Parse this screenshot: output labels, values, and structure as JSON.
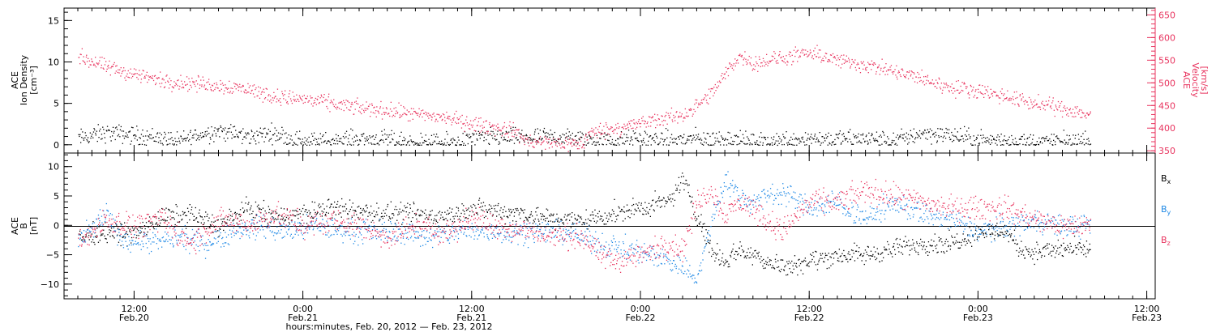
{
  "colors": {
    "axis": "#000000",
    "density": "#000000",
    "velocity": "#e8335e",
    "bx": "#000000",
    "by": "#1e88e5",
    "bz": "#e8335e"
  },
  "chart_data": [
    {
      "panel": "plasma",
      "type": "scatter",
      "x_range_hours": [
        0,
        72
      ],
      "x_note": "hours after Feb.20 08:00",
      "left_axis": {
        "label_lines": [
          "ACE",
          "Ion Density",
          "[cm⁻³]"
        ],
        "ticks": [
          0,
          5,
          10,
          15
        ],
        "range": [
          -1,
          16.5
        ]
      },
      "right_axis": {
        "label_lines": [
          "ACE",
          "Velocity",
          "[km/s]"
        ],
        "ticks": [
          350,
          400,
          450,
          500,
          550,
          600,
          650
        ],
        "range": [
          345,
          665
        ]
      },
      "series": [
        {
          "key": "density",
          "axis": "left",
          "anchors": [
            [
              0,
              0.8
            ],
            [
              2,
              1.5
            ],
            [
              4,
              1.2
            ],
            [
              6,
              0.9
            ],
            [
              7,
              0.3
            ],
            [
              8,
              1.0
            ],
            [
              10,
              1.8
            ],
            [
              12,
              1.0
            ],
            [
              14,
              1.5
            ],
            [
              15,
              0.8
            ],
            [
              17,
              0.4
            ],
            [
              20,
              0.8
            ],
            [
              22,
              0.6
            ],
            [
              24,
              0.3
            ],
            [
              26,
              0.2
            ],
            [
              28,
              0.8
            ],
            [
              30,
              1.0
            ],
            [
              32,
              0.9
            ],
            [
              34,
              1.0
            ],
            [
              36,
              0.7
            ],
            [
              38,
              0.5
            ],
            [
              40,
              0.8
            ],
            [
              42,
              0.6
            ],
            [
              44,
              0.8
            ],
            [
              45,
              0.6
            ],
            [
              46,
              0.9
            ],
            [
              47,
              0.6
            ],
            [
              48,
              0.3
            ],
            [
              50,
              0.6
            ],
            [
              52,
              0.9
            ],
            [
              54,
              0.7
            ],
            [
              56,
              0.8
            ],
            [
              58,
              0.5
            ],
            [
              60,
              1.5
            ],
            [
              62,
              1.2
            ],
            [
              64,
              0.7
            ],
            [
              66,
              0.5
            ],
            [
              68,
              0.4
            ],
            [
              70,
              0.5
            ],
            [
              72,
              0.4
            ]
          ],
          "noise": 0.9
        },
        {
          "key": "velocity",
          "axis": "right",
          "anchors": [
            [
              0,
              560
            ],
            [
              2,
              535
            ],
            [
              4,
              520
            ],
            [
              6,
              505
            ],
            [
              8,
              500
            ],
            [
              10,
              495
            ],
            [
              12,
              488
            ],
            [
              14,
              470
            ],
            [
              16,
              465
            ],
            [
              18,
              455
            ],
            [
              20,
              445
            ],
            [
              22,
              440
            ],
            [
              24,
              430
            ],
            [
              26,
              425
            ],
            [
              28,
              410
            ],
            [
              30,
              400
            ],
            [
              31,
              395
            ],
            [
              32,
              370
            ],
            [
              34,
              368
            ],
            [
              36,
              366
            ],
            [
              36.1,
              385
            ],
            [
              37,
              395
            ],
            [
              39,
              405
            ],
            [
              41,
              418
            ],
            [
              43,
              430
            ],
            [
              44,
              450
            ],
            [
              45,
              475
            ],
            [
              46,
              520
            ],
            [
              47,
              560
            ],
            [
              48,
              545
            ],
            [
              50,
              555
            ],
            [
              52,
              565
            ],
            [
              53,
              560
            ],
            [
              54,
              550
            ],
            [
              56,
              540
            ],
            [
              58,
              525
            ],
            [
              60,
              510
            ],
            [
              62,
              490
            ],
            [
              64,
              485
            ],
            [
              66,
              470
            ],
            [
              68,
              455
            ],
            [
              70,
              445
            ],
            [
              72,
              430
            ]
          ],
          "noise": 14
        }
      ]
    },
    {
      "panel": "magnetic_field",
      "type": "scatter",
      "x_range_hours": [
        0,
        72
      ],
      "axis": {
        "label_lines": [
          "ACE",
          "B",
          "[nT]"
        ],
        "ticks": [
          -10,
          -5,
          0,
          5,
          10
        ],
        "range": [
          -12.5,
          12.3
        ]
      },
      "series": [
        {
          "key": "bx",
          "name": "Bx",
          "anchors": [
            [
              0,
              -2
            ],
            [
              2,
              -1
            ],
            [
              4,
              -1.5
            ],
            [
              6,
              1.5
            ],
            [
              8,
              2
            ],
            [
              10,
              0
            ],
            [
              12,
              3
            ],
            [
              14,
              1.5
            ],
            [
              16,
              2
            ],
            [
              18,
              3
            ],
            [
              20,
              2.5
            ],
            [
              22,
              2
            ],
            [
              24,
              2
            ],
            [
              26,
              1.5
            ],
            [
              28,
              3
            ],
            [
              30,
              2.5
            ],
            [
              32,
              2
            ],
            [
              34,
              1
            ],
            [
              36,
              1
            ],
            [
              38,
              2
            ],
            [
              40,
              3
            ],
            [
              42,
              4
            ],
            [
              43,
              8
            ],
            [
              44,
              2
            ],
            [
              45,
              -4
            ],
            [
              46,
              -6
            ],
            [
              47,
              -4
            ],
            [
              48,
              -5
            ],
            [
              50,
              -7
            ],
            [
              52,
              -6
            ],
            [
              54,
              -5
            ],
            [
              56,
              -5
            ],
            [
              58,
              -4
            ],
            [
              60,
              -3
            ],
            [
              62,
              -3
            ],
            [
              64,
              -1
            ],
            [
              66,
              -1
            ],
            [
              67,
              -4
            ],
            [
              68,
              -4.5
            ],
            [
              70,
              -4
            ],
            [
              72,
              -4
            ]
          ],
          "noise": 1.4
        },
        {
          "key": "by",
          "name": "By",
          "anchors": [
            [
              0,
              -3
            ],
            [
              2,
              2
            ],
            [
              3,
              -2
            ],
            [
              5,
              -3
            ],
            [
              7,
              -2
            ],
            [
              9,
              -3
            ],
            [
              11,
              -1
            ],
            [
              13,
              0
            ],
            [
              15,
              -1
            ],
            [
              17,
              0
            ],
            [
              19,
              -1
            ],
            [
              21,
              -1
            ],
            [
              23,
              -1
            ],
            [
              25,
              -2
            ],
            [
              27,
              -1
            ],
            [
              29,
              -1
            ],
            [
              31,
              -1
            ],
            [
              33,
              -1
            ],
            [
              35,
              -1
            ],
            [
              37,
              -3
            ],
            [
              39,
              -4
            ],
            [
              41,
              -5
            ],
            [
              43,
              -7
            ],
            [
              44,
              -9
            ],
            [
              45,
              0
            ],
            [
              46,
              8
            ],
            [
              47,
              5
            ],
            [
              48,
              4
            ],
            [
              50,
              6
            ],
            [
              52,
              3
            ],
            [
              54,
              4
            ],
            [
              56,
              1
            ],
            [
              58,
              4
            ],
            [
              60,
              2
            ],
            [
              62,
              1
            ],
            [
              64,
              -1
            ],
            [
              66,
              0
            ],
            [
              68,
              1
            ],
            [
              70,
              0
            ],
            [
              72,
              0
            ]
          ],
          "noise": 1.6
        },
        {
          "key": "bz",
          "name": "Bz",
          "anchors": [
            [
              0,
              -3
            ],
            [
              2,
              1
            ],
            [
              4,
              0
            ],
            [
              6,
              1
            ],
            [
              8,
              -3
            ],
            [
              10,
              1
            ],
            [
              12,
              0
            ],
            [
              14,
              2
            ],
            [
              16,
              0
            ],
            [
              18,
              1
            ],
            [
              20,
              0
            ],
            [
              22,
              -2
            ],
            [
              24,
              0
            ],
            [
              26,
              -1
            ],
            [
              28,
              1
            ],
            [
              30,
              0
            ],
            [
              32,
              -1
            ],
            [
              34,
              -2
            ],
            [
              36,
              -2
            ],
            [
              37,
              -5
            ],
            [
              38,
              -6
            ],
            [
              40,
              -5
            ],
            [
              42,
              -3
            ],
            [
              43,
              -4
            ],
            [
              44,
              4
            ],
            [
              45,
              6
            ],
            [
              46,
              2
            ],
            [
              47,
              4
            ],
            [
              48,
              3
            ],
            [
              50,
              -1
            ],
            [
              52,
              4
            ],
            [
              54,
              4
            ],
            [
              56,
              6
            ],
            [
              58,
              5
            ],
            [
              60,
              4
            ],
            [
              62,
              3
            ],
            [
              64,
              3
            ],
            [
              66,
              3
            ],
            [
              68,
              1
            ],
            [
              70,
              0
            ],
            [
              72,
              0
            ]
          ],
          "noise": 1.7
        }
      ]
    }
  ],
  "x_axis": {
    "ticks": [
      {
        "hour": 4,
        "time": "12:00",
        "date": "Feb.20"
      },
      {
        "hour": 16,
        "time": "0:00",
        "date": "Feb.21"
      },
      {
        "hour": 28,
        "time": "12:00",
        "date": "Feb.21"
      },
      {
        "hour": 40,
        "time": "0:00",
        "date": "Feb.22"
      },
      {
        "hour": 52,
        "time": "12:00",
        "date": "Feb.22"
      },
      {
        "hour": 64,
        "time": "0:00",
        "date": "Feb.23"
      },
      {
        "hour": 76,
        "time": "12:00",
        "date": "Feb.23"
      }
    ],
    "title": "hours:minutes, Feb. 20, 2012 — Feb. 23, 2012"
  },
  "legend": {
    "bx": "B",
    "bx_sub": "x",
    "by": "B",
    "by_sub": "y",
    "bz": "B",
    "bz_sub": "z"
  }
}
